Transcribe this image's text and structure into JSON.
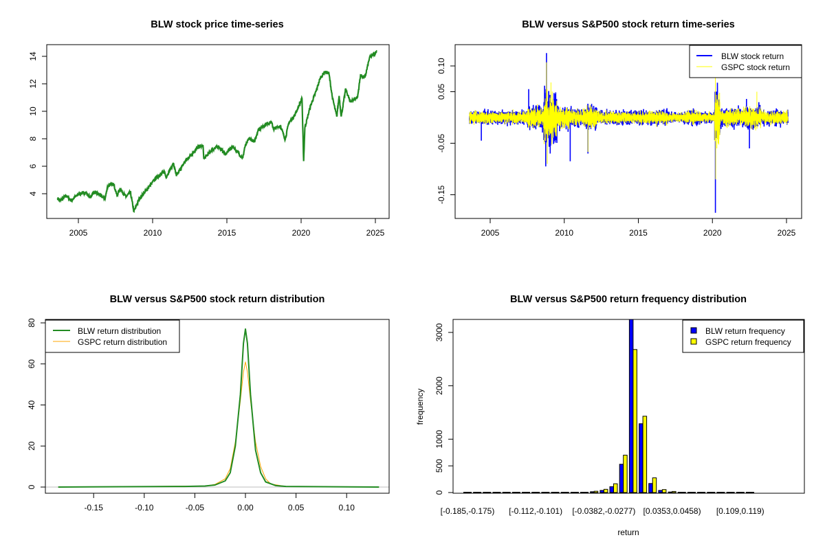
{
  "colors": {
    "blw_price": "#228B22",
    "blw_return": "#0000FF",
    "gspc_return": "#FFFF00",
    "blw_density": "#228B22",
    "gspc_density": "#FFA500",
    "blw_bar": "#0000FF",
    "gspc_bar": "#FFFF00"
  },
  "chart_data": [
    {
      "type": "line",
      "title": "BLW stock price time-series",
      "xlabel": "",
      "ylabel": "",
      "xlim": [
        2003.0,
        2025.6
      ],
      "ylim": [
        2.3,
        14.9
      ],
      "xticks": [
        2005,
        2010,
        2015,
        2020,
        2025
      ],
      "xtick_labels": [
        "2005",
        "2010",
        "2015",
        "2020",
        "2025"
      ],
      "yticks": [
        4,
        6,
        8,
        10,
        12,
        14
      ],
      "ytick_labels": [
        "4",
        "6",
        "8",
        "10",
        "12",
        "14"
      ],
      "series": [
        {
          "name": "BLW",
          "x": [
            2003.6,
            2003.8,
            2004.2,
            2004.5,
            2005.0,
            2005.5,
            2005.8,
            2006.0,
            2006.3,
            2006.8,
            2006.96,
            2007.35,
            2007.6,
            2007.8,
            2008.2,
            2008.5,
            2008.74,
            2009.1,
            2009.6,
            2010.2,
            2010.8,
            2010.9,
            2011.4,
            2011.6,
            2012.2,
            2013.1,
            2013.4,
            2013.45,
            2014.0,
            2014.45,
            2014.9,
            2015.4,
            2016.07,
            2016.2,
            2016.5,
            2016.85,
            2017.1,
            2017.7,
            2018.0,
            2018.15,
            2018.6,
            2018.93,
            2019.16,
            2019.6,
            2020.06,
            2020.17,
            2020.25,
            2020.6,
            2021.0,
            2021.3,
            2021.6,
            2021.87,
            2022.1,
            2022.4,
            2022.56,
            2022.7,
            2023.0,
            2023.3,
            2023.8,
            2024.0,
            2024.3,
            2024.6,
            2025.1
          ],
          "y": [
            3.67,
            3.5,
            3.87,
            3.5,
            3.95,
            4.1,
            3.7,
            4.1,
            4.03,
            3.62,
            4.53,
            4.78,
            3.87,
            4.37,
            3.78,
            4.12,
            2.7,
            3.62,
            4.28,
            5.12,
            5.62,
            5.2,
            6.2,
            5.28,
            6.37,
            7.45,
            7.45,
            6.53,
            7.2,
            7.45,
            6.87,
            7.45,
            6.58,
            7.37,
            8.03,
            7.78,
            8.62,
            9.12,
            9.2,
            8.7,
            8.95,
            7.95,
            9.12,
            9.78,
            10.92,
            6.37,
            8.78,
            10.28,
            11.45,
            12.45,
            12.87,
            12.78,
            11.03,
            9.62,
            11.12,
            9.62,
            11.62,
            10.7,
            11.03,
            12.62,
            12.45,
            13.87,
            14.37
          ]
        }
      ]
    },
    {
      "type": "line",
      "title": "BLW versus S&P500 stock return time-series",
      "xlim": [
        2003.0,
        2025.6
      ],
      "ylim": [
        -0.195,
        0.135
      ],
      "xticks": [
        2005,
        2010,
        2015,
        2020,
        2025
      ],
      "xtick_labels": [
        "2005",
        "2010",
        "2015",
        "2020",
        "2025"
      ],
      "yticks": [
        0.1,
        0.05,
        -0.05,
        -0.15
      ],
      "ytick_labels": [
        "0.10",
        "0.05",
        "-0.05",
        "-0.15"
      ],
      "legend": {
        "position": "top-right",
        "entries": [
          "BLW stock return",
          "GSPC stock return"
        ]
      },
      "x_range": [
        2003.6,
        2025.1
      ],
      "volatility_regimes": [
        [
          2003.6,
          0.011
        ],
        [
          2007.5,
          0.018
        ],
        [
          2008.6,
          0.04
        ],
        [
          2009.5,
          0.018
        ],
        [
          2010.5,
          0.014
        ],
        [
          2011.5,
          0.02
        ],
        [
          2012.2,
          0.011
        ],
        [
          2015.5,
          0.012
        ],
        [
          2017,
          0.008
        ],
        [
          2018.1,
          0.012
        ],
        [
          2019.2,
          0.009
        ],
        [
          2020.15,
          0.045
        ],
        [
          2020.5,
          0.015
        ],
        [
          2022,
          0.018
        ],
        [
          2023.3,
          0.012
        ],
        [
          2025.1,
          0.011
        ]
      ],
      "series": [
        {
          "name": "BLW stock return",
          "spikes": [
            [
              2004.4,
              -0.045
            ],
            [
              2007.6,
              0.055
            ],
            [
              2008.75,
              -0.095
            ],
            [
              2008.8,
              0.125
            ],
            [
              2009.05,
              -0.07
            ],
            [
              2010.4,
              -0.085
            ],
            [
              2011.6,
              -0.07
            ],
            [
              2020.2,
              -0.185
            ],
            [
              2020.18,
              0.05
            ],
            [
              2022.5,
              -0.06
            ],
            [
              2022.3,
              0.036
            ]
          ]
        },
        {
          "name": "GSPC stock return",
          "spikes": [
            [
              2008.8,
              0.107
            ],
            [
              2008.85,
              -0.09
            ],
            [
              2009.1,
              0.068
            ],
            [
              2011.6,
              -0.067
            ],
            [
              2020.2,
              0.085
            ],
            [
              2020.22,
              -0.12
            ],
            [
              2020.3,
              -0.06
            ],
            [
              2023,
              0.05
            ]
          ]
        }
      ]
    },
    {
      "type": "line",
      "title": "BLW versus S&P500 stock return distribution",
      "xlim": [
        -0.196,
        0.143
      ],
      "ylim": [
        -3,
        81
      ],
      "xticks": [
        -0.15,
        -0.1,
        -0.05,
        0.0,
        0.05,
        0.1
      ],
      "xtick_labels": [
        "-0.15",
        "-0.10",
        "-0.05",
        "0.00",
        "0.05",
        "0.10"
      ],
      "yticks": [
        0,
        20,
        40,
        60,
        80
      ],
      "ytick_labels": [
        "0",
        "20",
        "40",
        "60",
        "80"
      ],
      "legend": {
        "position": "top-left",
        "entries": [
          "BLW return distribution",
          "GSPC return distribution"
        ]
      },
      "series": [
        {
          "name": "BLW return distribution",
          "x": [
            -0.185,
            -0.06,
            -0.04,
            -0.03,
            -0.02,
            -0.015,
            -0.01,
            -0.005,
            -0.002,
            0,
            0.002,
            0.005,
            0.01,
            0.015,
            0.02,
            0.03,
            0.04,
            0.132
          ],
          "y": [
            0,
            0.3,
            0.5,
            1,
            3,
            7,
            20,
            45,
            70,
            77,
            70,
            45,
            18,
            7,
            2.5,
            0.7,
            0.3,
            0
          ]
        },
        {
          "name": "GSPC return distribution",
          "x": [
            -0.185,
            -0.04,
            -0.03,
            -0.02,
            -0.015,
            -0.01,
            -0.005,
            -0.002,
            0,
            0.002,
            0.005,
            0.01,
            0.015,
            0.02,
            0.025,
            0.04,
            0.132
          ],
          "y": [
            0,
            0.5,
            1.3,
            4,
            9,
            22,
            42,
            56,
            61,
            56,
            42,
            22,
            10,
            4,
            1.5,
            0.3,
            0
          ]
        }
      ]
    },
    {
      "type": "bar",
      "title": "BLW versus S&P500 return frequency distribution",
      "xlabel": "return",
      "ylabel": "frequency",
      "ylim": [
        0,
        3270
      ],
      "yticks": [
        0,
        500,
        1000,
        2000,
        3000
      ],
      "ytick_labels": [
        "0",
        "500",
        "1000",
        "2000",
        "3000"
      ],
      "labeled_bins": [
        0,
        7,
        14,
        21,
        28
      ],
      "xtick_labels": [
        "[-0.185,-0.175)",
        "[-0.112,-0.101)",
        "[-0.0382,-0.0277)",
        "[0.0353,0.0458)",
        "[0.109,0.119)"
      ],
      "legend": {
        "position": "top-right",
        "entries": [
          "BLW return frequency",
          "GSPC return frequency"
        ]
      },
      "series": [
        {
          "name": "BLW return frequency",
          "values": [
            1,
            0,
            0,
            0,
            0,
            0,
            0,
            0,
            1,
            2,
            0,
            0,
            3,
            15,
            40,
            110,
            530,
            3400,
            1290,
            170,
            40,
            10,
            6,
            3,
            4,
            0,
            0,
            0,
            0,
            1
          ]
        },
        {
          "name": "GSPC return frequency",
          "values": [
            0,
            0,
            0,
            0,
            0,
            0,
            0,
            0,
            0,
            0,
            1,
            2,
            5,
            25,
            60,
            165,
            700,
            2680,
            1430,
            275,
            55,
            20,
            6,
            4,
            3,
            1,
            0,
            0,
            0,
            0
          ]
        }
      ]
    }
  ]
}
